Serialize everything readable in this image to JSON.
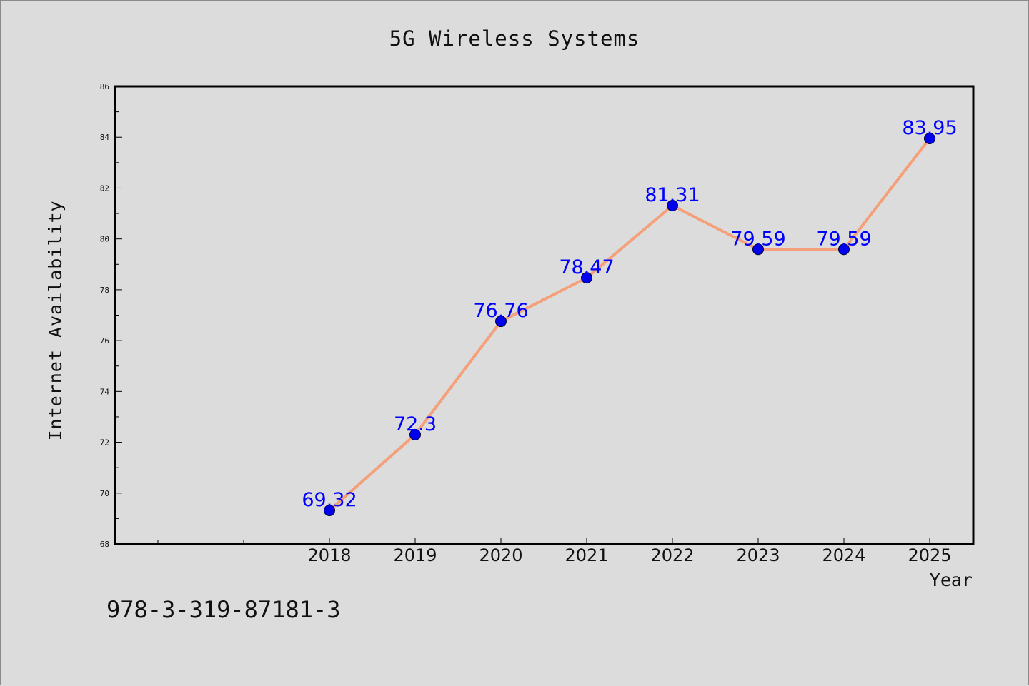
{
  "chart_data": {
    "type": "line",
    "title": "5G Wireless Systems",
    "xlabel": "Year",
    "ylabel": "Internet Availability",
    "x": [
      "2018",
      "2019",
      "2020",
      "2021",
      "2022",
      "2023",
      "2024",
      "2025"
    ],
    "series": [
      {
        "values": [
          69.32,
          72.3,
          76.76,
          78.47,
          81.31,
          79.59,
          79.59,
          83.95
        ],
        "labels": [
          "69.32",
          "72.3",
          "76.76",
          "78.47",
          "81.31",
          "79.59",
          "79.59",
          "83.95"
        ],
        "line_color": "#f4a07a",
        "marker_color": "#0000ee"
      }
    ],
    "ylim": [
      68,
      86
    ],
    "yticks": [
      "68",
      "70",
      "72",
      "74",
      "76",
      "78",
      "80",
      "82",
      "84",
      "86"
    ],
    "grid": false,
    "legend": "none",
    "data_label_color": "#0000ff"
  },
  "footer": {
    "isbn": "978-3-319-87181-3"
  }
}
